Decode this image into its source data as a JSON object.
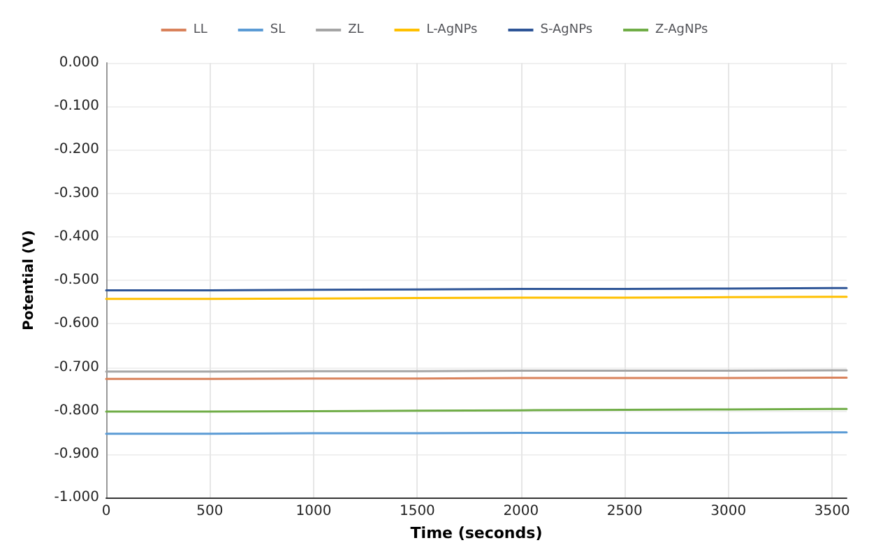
{
  "chart_data": {
    "type": "line",
    "xlabel": "Time (seconds)",
    "ylabel": "Potential (V)",
    "x": [
      0,
      500,
      1000,
      1500,
      2000,
      2500,
      3000,
      3500,
      3570
    ],
    "xlim": [
      0,
      3570
    ],
    "xticks": [
      0,
      500,
      1000,
      1500,
      2000,
      2500,
      3000,
      3500
    ],
    "ylim": [
      -1,
      0
    ],
    "yticks": [
      {
        "value": -1,
        "label": "-1.000"
      },
      {
        "value": -0.9,
        "label": "-0.900"
      },
      {
        "value": -0.8,
        "label": "-0.800"
      },
      {
        "value": -0.7,
        "label": "-0.700"
      },
      {
        "value": -0.6,
        "label": "-0.600"
      },
      {
        "value": -0.5,
        "label": "-0.500"
      },
      {
        "value": -0.4,
        "label": "-0.400"
      },
      {
        "value": -0.3,
        "label": "-0.300"
      },
      {
        "value": -0.2,
        "label": "-0.200"
      },
      {
        "value": -0.1,
        "label": "-0.100"
      },
      {
        "value": 0,
        "label": "0.000"
      }
    ],
    "grid": true,
    "legend": "top",
    "marker": "none",
    "line_style": "solid",
    "series": [
      {
        "name": "LL",
        "color": "#d9825b",
        "values": [
          -0.727,
          -0.727,
          -0.726,
          -0.726,
          -0.725,
          -0.725,
          -0.725,
          -0.724,
          -0.724
        ]
      },
      {
        "name": "SL",
        "color": "#5b9bd5",
        "values": [
          -0.853,
          -0.853,
          -0.852,
          -0.852,
          -0.851,
          -0.851,
          -0.851,
          -0.85,
          -0.85
        ]
      },
      {
        "name": "ZL",
        "color": "#a5a5a5",
        "values": [
          -0.71,
          -0.71,
          -0.709,
          -0.709,
          -0.708,
          -0.708,
          -0.708,
          -0.707,
          -0.707
        ]
      },
      {
        "name": "L-AgNPs",
        "color": "#ffc000",
        "values": [
          -0.543,
          -0.543,
          -0.542,
          -0.541,
          -0.54,
          -0.54,
          -0.539,
          -0.538,
          -0.538
        ]
      },
      {
        "name": "S-AgNPs",
        "color": "#2e5597",
        "values": [
          -0.523,
          -0.523,
          -0.522,
          -0.521,
          -0.52,
          -0.52,
          -0.519,
          -0.518,
          -0.518
        ]
      },
      {
        "name": "Z-AgNPs",
        "color": "#70ad47",
        "values": [
          -0.802,
          -0.802,
          -0.801,
          -0.8,
          -0.799,
          -0.798,
          -0.797,
          -0.796,
          -0.796
        ]
      }
    ]
  }
}
